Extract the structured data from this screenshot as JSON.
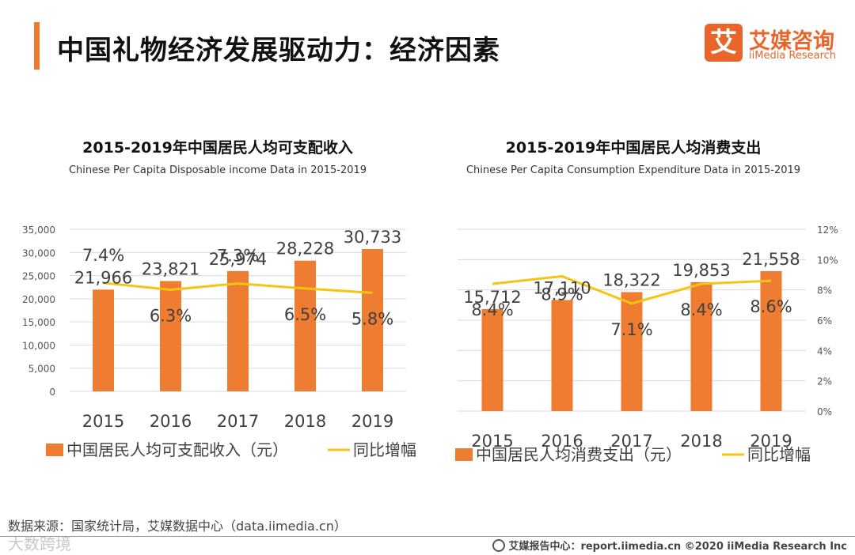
{
  "header": {
    "title": "中国礼物经济发展驱动力：经济因素",
    "logo_mark": "艾",
    "logo_cn": "艾媒咨询",
    "logo_en": "iiMedia Research"
  },
  "colors": {
    "bar": "#ee7d31",
    "line": "#f7c314",
    "accent": "#ee7a30",
    "text": "#404040",
    "grid": "#d9d9d9"
  },
  "chart_data": [
    {
      "type": "bar",
      "title": "2015-2019年中国居民人均可支配收入",
      "subtitle": "Chinese Per Capita Disposable income Data in 2015-2019",
      "categories": [
        "2015",
        "2016",
        "2017",
        "2018",
        "2019"
      ],
      "series": [
        {
          "name": "中国居民人均可支配收入（元）",
          "type": "bar",
          "values": [
            21966,
            23821,
            25974,
            28228,
            30733
          ],
          "labels": [
            "21,966",
            "23,821",
            "25,974",
            "28,228",
            "30,733"
          ]
        },
        {
          "name": "同比增幅",
          "type": "line",
          "values": [
            7.4,
            6.3,
            7.3,
            6.5,
            5.8
          ],
          "labels": [
            "7.4%",
            "6.3%",
            "7.3%",
            "6.5%",
            "5.8%"
          ]
        }
      ],
      "yticks": [
        "35,000",
        "30,000",
        "25,000",
        "20,000",
        "15,000",
        "10,000",
        "5,000",
        "0"
      ],
      "ylim": [
        0,
        35000
      ],
      "legend": "bottom",
      "grid": true
    },
    {
      "type": "bar",
      "title": "2015-2019年中国居民人均消费支出",
      "subtitle": "Chinese Per Capita Consumption Expenditure Data in 2015-2019",
      "categories": [
        "2015",
        "2016",
        "2017",
        "2018",
        "2019"
      ],
      "series": [
        {
          "name": "中国居民人均消费支出（元）",
          "type": "bar",
          "values": [
            15712,
            17110,
            18322,
            19853,
            21558
          ],
          "labels": [
            "15,712",
            "17,110",
            "18,322",
            "19,853",
            "21,558"
          ]
        },
        {
          "name": "同比增幅",
          "type": "line",
          "values": [
            8.4,
            8.9,
            7.1,
            8.4,
            8.6
          ],
          "labels": [
            "8.4%",
            "8.9%",
            "7.1%",
            "8.4%",
            "8.6%"
          ]
        }
      ],
      "y2ticks": [
        "12%",
        "10%",
        "8%",
        "6%",
        "4%",
        "2%",
        "0%"
      ],
      "y2lim": [
        0,
        12
      ],
      "legend": "bottom",
      "grid": true
    }
  ],
  "footer": {
    "source": "数据来源：国家统计局，艾媒数据中心（data.iimedia.cn）",
    "report": "艾媒报告中心：report.iimedia.cn  ©2020  iiMedia Research  Inc",
    "watermark": "大数跨境"
  }
}
